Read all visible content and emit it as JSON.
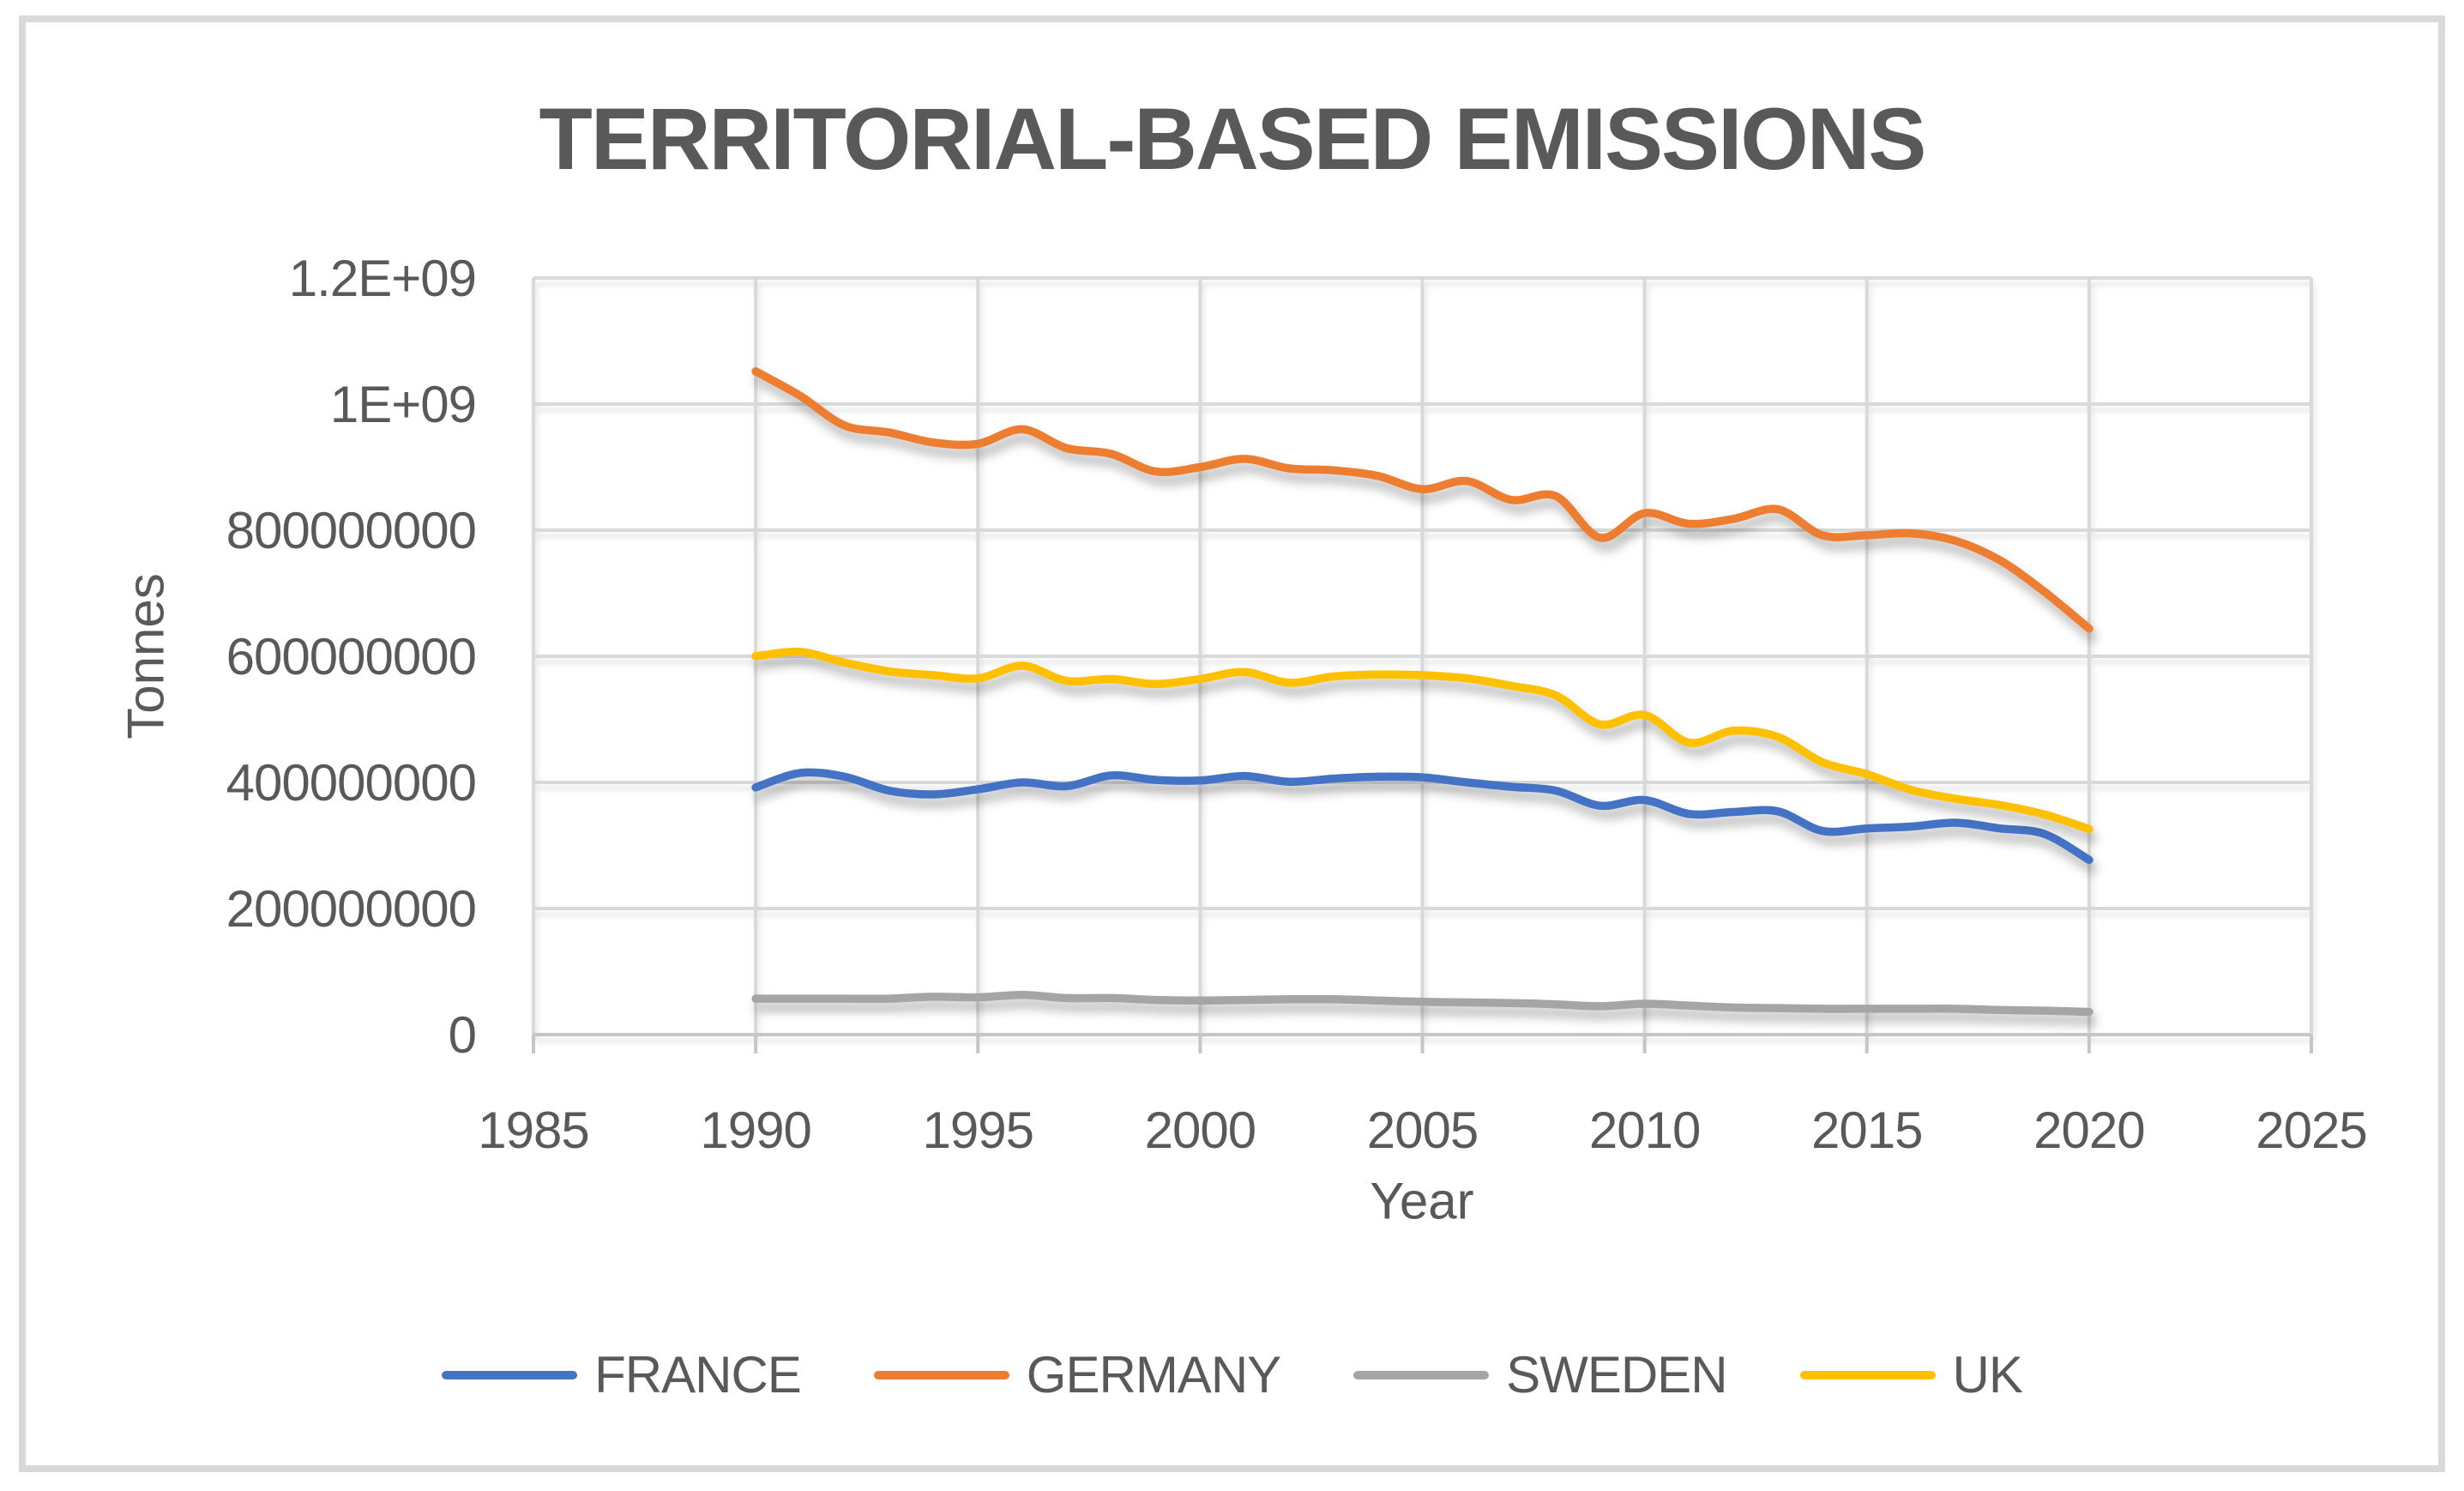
{
  "title": "TERRITORIAL-BASED EMISSIONS",
  "y_axis": {
    "title": "Tonnes",
    "tick_labels": [
      "1.2E+09",
      "1E+09",
      "800000000",
      "600000000",
      "400000000",
      "200000000",
      "0"
    ],
    "tick_values": [
      1200000000,
      1000000000,
      800000000,
      600000000,
      400000000,
      200000000,
      0
    ]
  },
  "x_axis": {
    "title": "Year",
    "tick_labels": [
      "1985",
      "1990",
      "1995",
      "2000",
      "2005",
      "2010",
      "2015",
      "2020",
      "2025"
    ],
    "tick_values": [
      1985,
      1990,
      1995,
      2000,
      2005,
      2010,
      2015,
      2020,
      2025
    ]
  },
  "colors": {
    "france": "#4472C4",
    "germany": "#ED7D31",
    "sweden": "#A5A5A5",
    "uk": "#FFC000",
    "text": "#595959",
    "gridline": "#D9D9D9",
    "axis_line": "#C6C6C6",
    "frame_border": "#D9D9D9"
  },
  "chart_data": {
    "type": "line",
    "title": "TERRITORIAL-BASED EMISSIONS",
    "xlabel": "Year",
    "ylabel": "Tonnes",
    "xlim": [
      1985,
      2025
    ],
    "ylim": [
      0,
      1200000000
    ],
    "grid": true,
    "smooth": true,
    "legend_position": "bottom",
    "x": [
      1990,
      1991,
      1992,
      1993,
      1994,
      1995,
      1996,
      1997,
      1998,
      1999,
      2000,
      2001,
      2002,
      2003,
      2004,
      2005,
      2006,
      2007,
      2008,
      2009,
      2010,
      2011,
      2012,
      2013,
      2014,
      2015,
      2016,
      2017,
      2018,
      2019,
      2020
    ],
    "series": [
      {
        "name": "FRANCE",
        "color": "#4472C4",
        "values": [
          392000000,
          415000000,
          409000000,
          387000000,
          381000000,
          389000000,
          400000000,
          394000000,
          411000000,
          404000000,
          403000000,
          410000000,
          401000000,
          406000000,
          409000000,
          408000000,
          400000000,
          393000000,
          387000000,
          363000000,
          372000000,
          350000000,
          353000000,
          354000000,
          323000000,
          327000000,
          330000000,
          336000000,
          327000000,
          318000000,
          277000000
        ]
      },
      {
        "name": "GERMANY",
        "color": "#ED7D31",
        "values": [
          1052000000,
          1013000000,
          966000000,
          955000000,
          939000000,
          937000000,
          960000000,
          930000000,
          921000000,
          893000000,
          900000000,
          913000000,
          898000000,
          895000000,
          886000000,
          865000000,
          878000000,
          848000000,
          854000000,
          788000000,
          827000000,
          810000000,
          818000000,
          833000000,
          792000000,
          792000000,
          795000000,
          783000000,
          752000000,
          702000000,
          644000000
        ]
      },
      {
        "name": "SWEDEN",
        "color": "#A5A5A5",
        "values": [
          57000000,
          57000000,
          57000000,
          57000000,
          60000000,
          59000000,
          63000000,
          58000000,
          58000000,
          55000000,
          54000000,
          55000000,
          56000000,
          56000000,
          54000000,
          52000000,
          51000000,
          50000000,
          48000000,
          45000000,
          49000000,
          46000000,
          43000000,
          42000000,
          41000000,
          41000000,
          41000000,
          41000000,
          39000000,
          38000000,
          36000000
        ]
      },
      {
        "name": "UK",
        "color": "#FFC000",
        "values": [
          600000000,
          607000000,
          590000000,
          576000000,
          570000000,
          565000000,
          585000000,
          561000000,
          564000000,
          556000000,
          564000000,
          575000000,
          558000000,
          568000000,
          571000000,
          570000000,
          565000000,
          553000000,
          538000000,
          492000000,
          507000000,
          463000000,
          482000000,
          472000000,
          432000000,
          413000000,
          388000000,
          374000000,
          364000000,
          349000000,
          326000000
        ]
      }
    ]
  }
}
